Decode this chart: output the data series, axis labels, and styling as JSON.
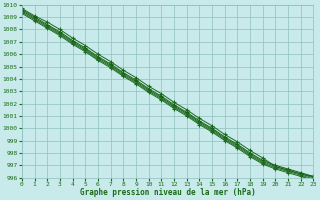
{
  "title": "Graphe pression niveau de la mer (hPa)",
  "bg_color": "#c8eaea",
  "grid_color": "#90c0c0",
  "xlim": [
    0,
    23
  ],
  "ylim": [
    996,
    1010
  ],
  "yticks": [
    996,
    997,
    998,
    999,
    1000,
    1001,
    1002,
    1003,
    1004,
    1005,
    1006,
    1007,
    1008,
    1009,
    1010
  ],
  "xticks": [
    0,
    1,
    2,
    3,
    4,
    5,
    6,
    7,
    8,
    9,
    10,
    11,
    12,
    13,
    14,
    15,
    16,
    17,
    18,
    19,
    20,
    21,
    22,
    23
  ],
  "series": [
    [
      1009.7,
      1009.1,
      1008.6,
      1008.0,
      1007.3,
      1006.7,
      1006.0,
      1005.4,
      1004.7,
      1004.1,
      1003.4,
      1002.8,
      1002.1,
      1001.5,
      1000.8,
      1000.2,
      999.5,
      998.9,
      998.2,
      997.6,
      996.9,
      996.6,
      996.3,
      996.1
    ],
    [
      1009.5,
      1008.9,
      1008.3,
      1007.7,
      1007.0,
      1006.4,
      1005.7,
      1005.1,
      1004.4,
      1003.8,
      1003.1,
      1002.5,
      1001.8,
      1001.2,
      1000.5,
      999.9,
      999.2,
      998.6,
      997.9,
      997.3,
      996.9,
      996.6,
      996.3,
      996.0
    ],
    [
      1009.6,
      1009.0,
      1008.4,
      1007.8,
      1007.1,
      1006.5,
      1005.8,
      1005.2,
      1004.5,
      1003.9,
      1003.2,
      1002.6,
      1001.9,
      1001.3,
      1000.6,
      1000.0,
      999.3,
      998.7,
      998.0,
      997.4,
      997.0,
      996.7,
      996.4,
      996.1
    ],
    [
      1009.4,
      1008.8,
      1008.2,
      1007.6,
      1006.9,
      1006.3,
      1005.6,
      1005.0,
      1004.3,
      1003.7,
      1003.0,
      1002.4,
      1001.7,
      1001.1,
      1000.4,
      999.8,
      999.1,
      998.5,
      997.8,
      997.2,
      996.8,
      996.5,
      996.2,
      995.9
    ],
    [
      1009.3,
      1008.7,
      1008.1,
      1007.5,
      1006.8,
      1006.2,
      1005.5,
      1004.9,
      1004.2,
      1003.6,
      1002.9,
      1002.3,
      1001.6,
      1001.0,
      1000.3,
      999.7,
      999.0,
      998.4,
      997.7,
      997.1,
      996.7,
      996.4,
      996.1,
      995.8
    ]
  ],
  "line_colors": [
    "#1a6b1a",
    "#206820",
    "#186018",
    "#247024",
    "#1c6c1c"
  ],
  "marker_indices": [
    0,
    1,
    2,
    3,
    4,
    5,
    6,
    7,
    8,
    9,
    10,
    11,
    12,
    13,
    14,
    15,
    16,
    17,
    18,
    19,
    20,
    21,
    22,
    23
  ],
  "tick_color": "#1a6b1a",
  "label_fontsize": 4.5,
  "xlabel_fontsize": 5.5
}
